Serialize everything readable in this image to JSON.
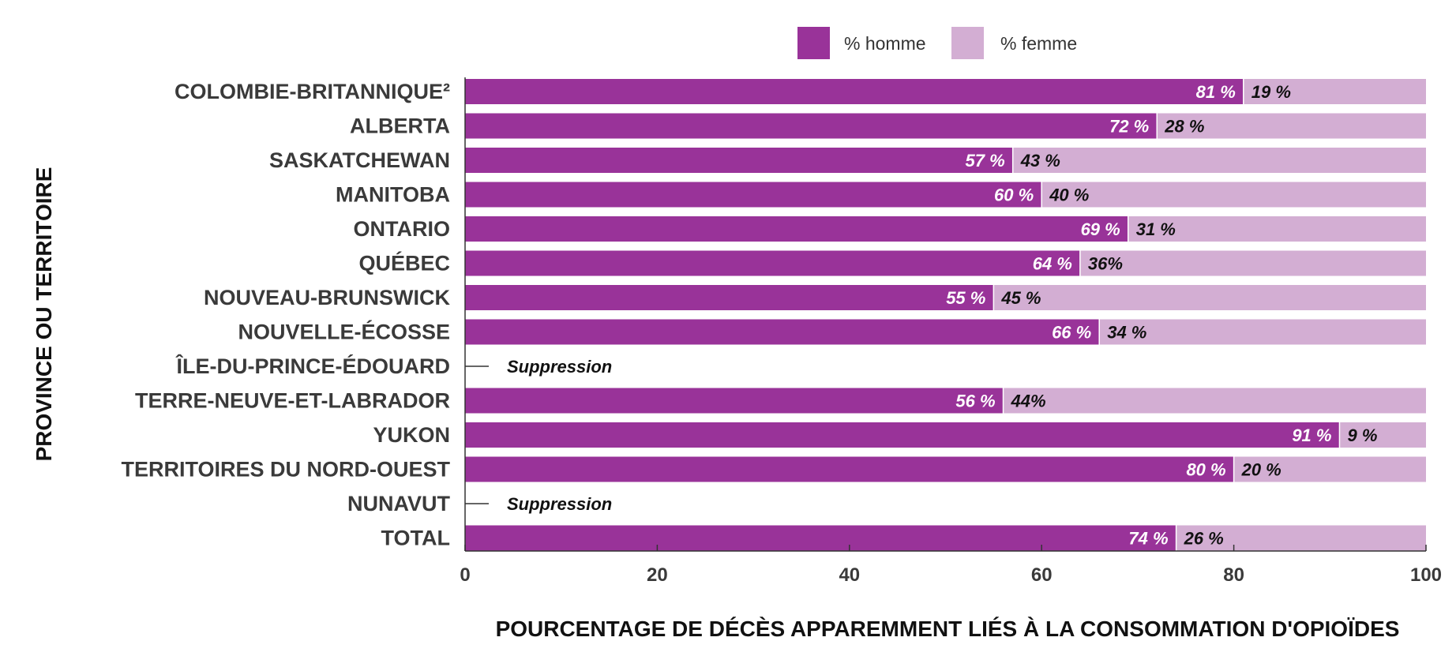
{
  "chart_data": {
    "type": "bar",
    "orientation": "horizontal",
    "stacked": true,
    "categories": [
      "COLOMBIE-BRITANNIQUE²",
      "ALBERTA",
      "SASKATCHEWAN",
      "MANITOBA",
      "ONTARIO",
      "QUÉBEC",
      "NOUVEAU-BRUNSWICK",
      "NOUVELLE-ÉCOSSE",
      "ÎLE-DU-PRINCE-ÉDOUARD",
      "TERRE-NEUVE-ET-LABRADOR",
      "YUKON",
      "TERRITOIRES DU NORD-OUEST",
      "NUNAVUT",
      "TOTAL"
    ],
    "series": [
      {
        "name": "% homme",
        "color": "#993399",
        "values": [
          81,
          72,
          57,
          60,
          69,
          64,
          55,
          66,
          null,
          56,
          91,
          80,
          null,
          74
        ],
        "labels": [
          "81 %",
          "72 %",
          "57 %",
          "60 %",
          "69 %",
          "64 %",
          "55 %",
          "66 %",
          "",
          "56 %",
          "91 %",
          "80 %",
          "",
          "74 %"
        ]
      },
      {
        "name": "% femme",
        "color": "#d3aed3",
        "values": [
          19,
          28,
          43,
          40,
          31,
          36,
          45,
          34,
          null,
          44,
          9,
          20,
          null,
          26
        ],
        "labels": [
          "19 %",
          "28 %",
          "43 %",
          "40 %",
          "31 %",
          "36%",
          "45 %",
          "34 %",
          "",
          "44%",
          "9 %",
          "20 %",
          "",
          "26 %"
        ]
      }
    ],
    "suppressed_label": "Suppression",
    "xlim": [
      0,
      100
    ],
    "xticks": [
      "0",
      "20",
      "40",
      "60",
      "80",
      "100"
    ],
    "xlabel": "POURCENTAGE DE DÉCÈS APPAREMMENT LIÉS À LA CONSOMMATION D'OPIOÏDES",
    "ylabel": "PROVINCE OU TERRITOIRE",
    "legend_position": "top"
  }
}
